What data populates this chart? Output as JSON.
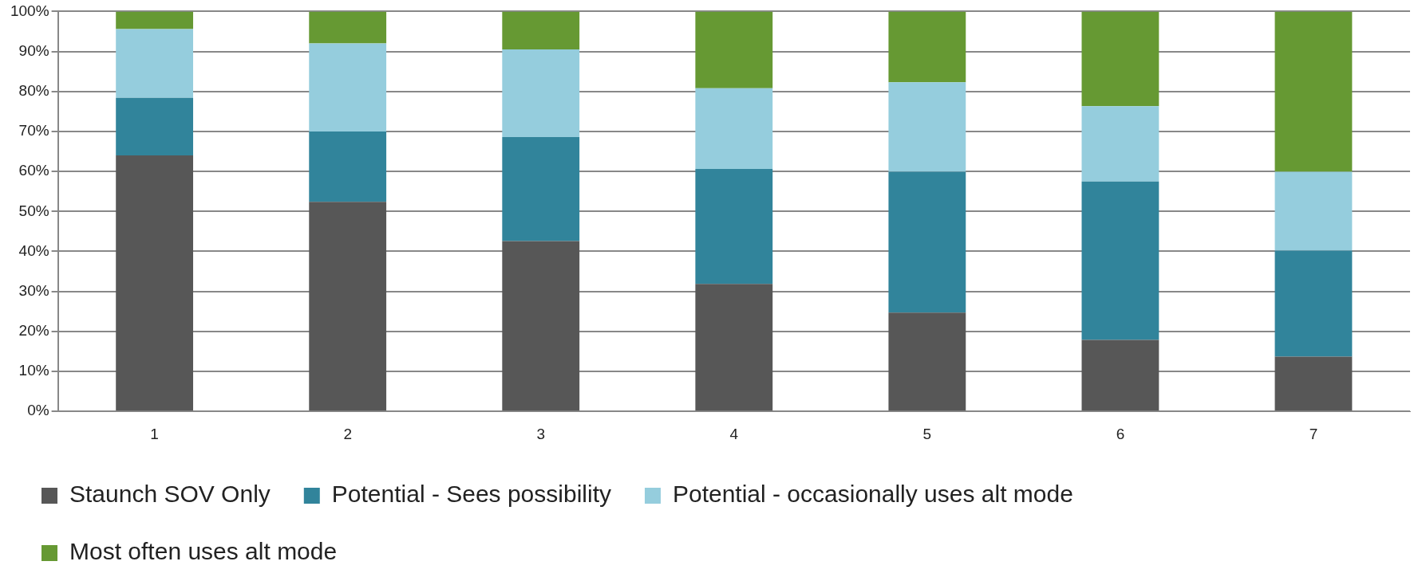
{
  "chart_data": {
    "type": "bar",
    "stacked": true,
    "categories": [
      "1",
      "2",
      "3",
      "4",
      "5",
      "6",
      "7"
    ],
    "series": [
      {
        "name": "Staunch SOV Only",
        "color": "#575757",
        "values": [
          64.0,
          52.4,
          42.6,
          31.9,
          24.7,
          17.9,
          13.7
        ]
      },
      {
        "name": "Potential - Sees possibility",
        "color": "#31849b",
        "values": [
          14.4,
          17.6,
          26.0,
          28.7,
          35.2,
          39.6,
          26.5
        ]
      },
      {
        "name": "Potential - occasionally uses alt mode",
        "color": "#95cddd",
        "values": [
          17.2,
          22.0,
          21.9,
          20.2,
          22.4,
          18.8,
          19.7
        ]
      },
      {
        "name": "Most often uses alt mode",
        "color": "#669933",
        "values": [
          4.4,
          8.0,
          9.5,
          19.2,
          17.7,
          23.7,
          40.1
        ]
      }
    ],
    "ylim": [
      0,
      100
    ],
    "yticks": [
      {
        "value": 0,
        "label": "0%"
      },
      {
        "value": 10,
        "label": "10%"
      },
      {
        "value": 20,
        "label": "20%"
      },
      {
        "value": 30,
        "label": "30%"
      },
      {
        "value": 40,
        "label": "40%"
      },
      {
        "value": 50,
        "label": "50%"
      },
      {
        "value": 60,
        "label": "60%"
      },
      {
        "value": 70,
        "label": "70%"
      },
      {
        "value": 80,
        "label": "80%"
      },
      {
        "value": 90,
        "label": "90%"
      },
      {
        "value": 100,
        "label": "100%"
      }
    ],
    "grid": "y",
    "legend": "bottom"
  }
}
